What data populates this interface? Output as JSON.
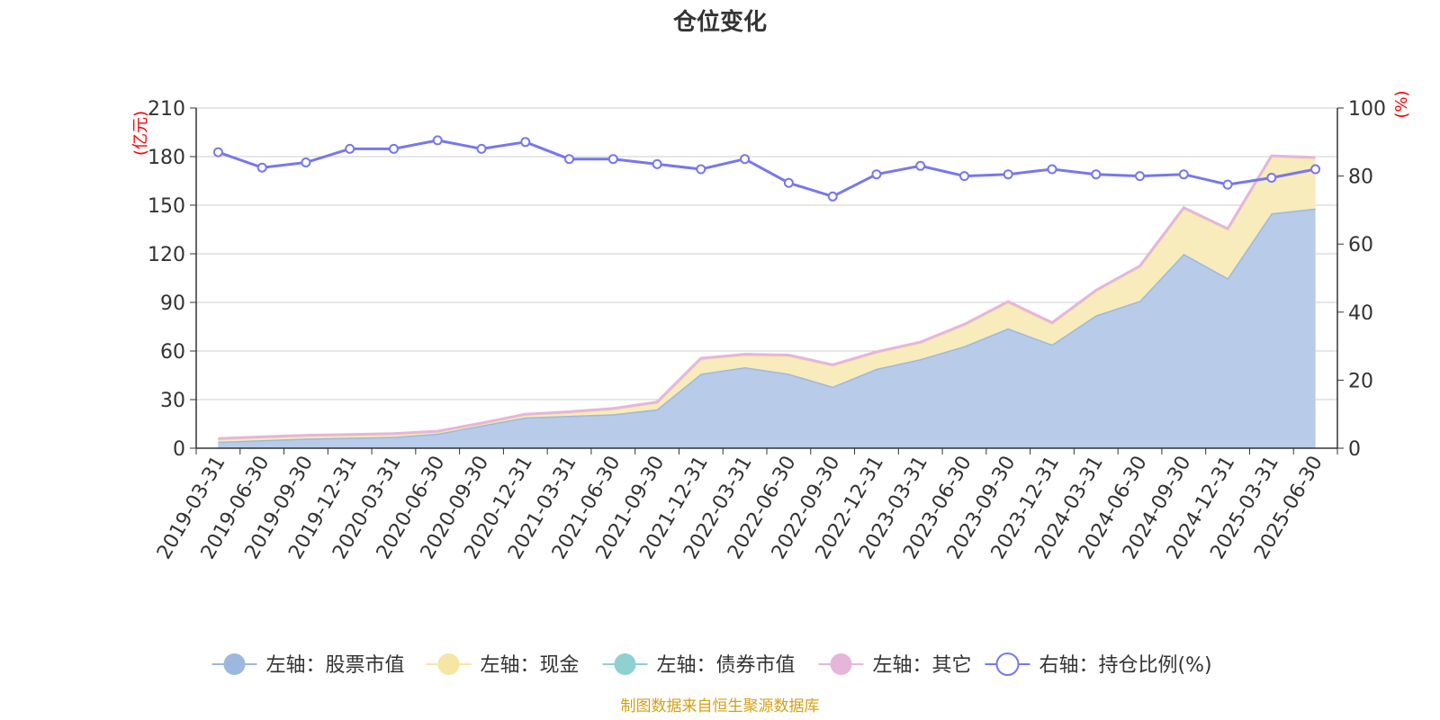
{
  "chart_data": {
    "type": "area",
    "title": "仓位变化",
    "left_axis": {
      "unit": "(亿元)",
      "min": 0,
      "max": 210,
      "ticks": [
        0,
        30,
        60,
        90,
        120,
        150,
        180,
        210
      ]
    },
    "right_axis": {
      "unit": "(%)",
      "min": 0,
      "max": 100,
      "ticks": [
        0,
        20,
        40,
        60,
        80,
        100
      ]
    },
    "categories": [
      "2019-03-31",
      "2019-06-30",
      "2019-09-30",
      "2019-12-31",
      "2020-03-31",
      "2020-06-30",
      "2020-09-30",
      "2020-12-31",
      "2021-03-31",
      "2021-06-30",
      "2021-09-30",
      "2021-12-31",
      "2022-03-31",
      "2022-06-30",
      "2022-09-30",
      "2022-12-31",
      "2023-03-31",
      "2023-06-30",
      "2023-09-30",
      "2023-12-31",
      "2024-03-31",
      "2024-06-30",
      "2024-09-30",
      "2024-12-31",
      "2025-03-31",
      "2025-06-30"
    ],
    "series": [
      {
        "name": "左轴：股票市值",
        "axis": "left",
        "stack": true,
        "color": "#9cb8e0",
        "fill": "#b8cbe9",
        "values": [
          4,
          5,
          6,
          6.5,
          7,
          9,
          14,
          19,
          20,
          21,
          24,
          46,
          50,
          46,
          38,
          49,
          55,
          63,
          74,
          64,
          82,
          91,
          120,
          105,
          145,
          148
        ]
      },
      {
        "name": "左轴：现金",
        "axis": "left",
        "stack": true,
        "color": "#f5e6a3",
        "fill": "#f8ebbc",
        "values": [
          1.5,
          1.5,
          1.5,
          1.5,
          1.5,
          1,
          1,
          1.5,
          2,
          3,
          4,
          9,
          7.5,
          11,
          13,
          10,
          10,
          13,
          16,
          13,
          15,
          21,
          28,
          30,
          35,
          31
        ]
      },
      {
        "name": "左轴：债券市值",
        "axis": "left",
        "stack": true,
        "color": "#8fd0d0",
        "fill": "#8fd0d0",
        "values": [
          0,
          0,
          0,
          0,
          0,
          0,
          0,
          0,
          0,
          0,
          0,
          0,
          0,
          0,
          0,
          0,
          0,
          0,
          0,
          0,
          0,
          0,
          0,
          0,
          0,
          0
        ]
      },
      {
        "name": "左轴：其它",
        "axis": "left",
        "stack": true,
        "color": "#e6b5da",
        "fill": "#e6b5da",
        "values": [
          0.5,
          0.5,
          0.5,
          0.5,
          0.5,
          0.5,
          0.5,
          0.5,
          0.5,
          0.5,
          0.5,
          0.5,
          0.5,
          0.5,
          0.5,
          0.5,
          0.5,
          0.5,
          0.5,
          0.5,
          0.5,
          0.5,
          0.5,
          0.5,
          0.5,
          0.5
        ]
      },
      {
        "name": "右轴：持仓比例(%)",
        "axis": "right",
        "stack": false,
        "color": "#7777ee",
        "values": [
          87,
          82.5,
          84,
          88,
          88,
          90.5,
          88,
          90,
          85,
          85,
          83.5,
          82,
          85,
          78,
          74,
          80.5,
          83,
          80,
          80.5,
          82,
          80.5,
          80,
          80.5,
          77.5,
          79.5,
          82
        ]
      }
    ],
    "grid": true,
    "legend_position": "bottom"
  },
  "source": "制图数据来自恒生聚源数据库",
  "colors": {
    "axis": "#333333",
    "grid": "#cccccc",
    "unit": "#ff0000",
    "source": "#d4a017"
  }
}
